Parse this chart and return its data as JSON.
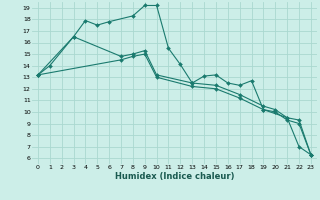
{
  "xlabel": "Humidex (Indice chaleur)",
  "bg_color": "#cceee8",
  "grid_color": "#aad8d0",
  "line_color": "#1a7a6e",
  "xlim": [
    -0.5,
    23.5
  ],
  "ylim": [
    5.5,
    19.5
  ],
  "xticks": [
    0,
    1,
    2,
    3,
    4,
    5,
    6,
    7,
    8,
    9,
    10,
    11,
    12,
    13,
    14,
    15,
    16,
    17,
    18,
    19,
    20,
    21,
    22,
    23
  ],
  "yticks": [
    6,
    7,
    8,
    9,
    10,
    11,
    12,
    13,
    14,
    15,
    16,
    17,
    18,
    19
  ],
  "series1_x": [
    0,
    1,
    3,
    4,
    5,
    6,
    8,
    9,
    10,
    11,
    12,
    13,
    14,
    15,
    16,
    17,
    18,
    19,
    21,
    22,
    23
  ],
  "series1_y": [
    13.2,
    14.0,
    16.5,
    17.9,
    17.5,
    17.8,
    18.3,
    19.2,
    19.2,
    15.5,
    14.1,
    12.5,
    13.1,
    13.2,
    12.5,
    12.3,
    12.7,
    10.2,
    9.5,
    7.0,
    6.3
  ],
  "series2_x": [
    0,
    3,
    7,
    8,
    9,
    10,
    13,
    15,
    17,
    19,
    20,
    21,
    22,
    23
  ],
  "series2_y": [
    13.2,
    16.5,
    14.8,
    15.0,
    15.3,
    13.2,
    12.5,
    12.3,
    11.5,
    10.5,
    10.2,
    9.5,
    9.3,
    6.3
  ],
  "series3_x": [
    0,
    7,
    8,
    9,
    10,
    13,
    15,
    17,
    19,
    20,
    21,
    22,
    23
  ],
  "series3_y": [
    13.2,
    14.5,
    14.8,
    15.0,
    13.0,
    12.2,
    12.0,
    11.2,
    10.2,
    10.0,
    9.3,
    9.0,
    6.3
  ]
}
